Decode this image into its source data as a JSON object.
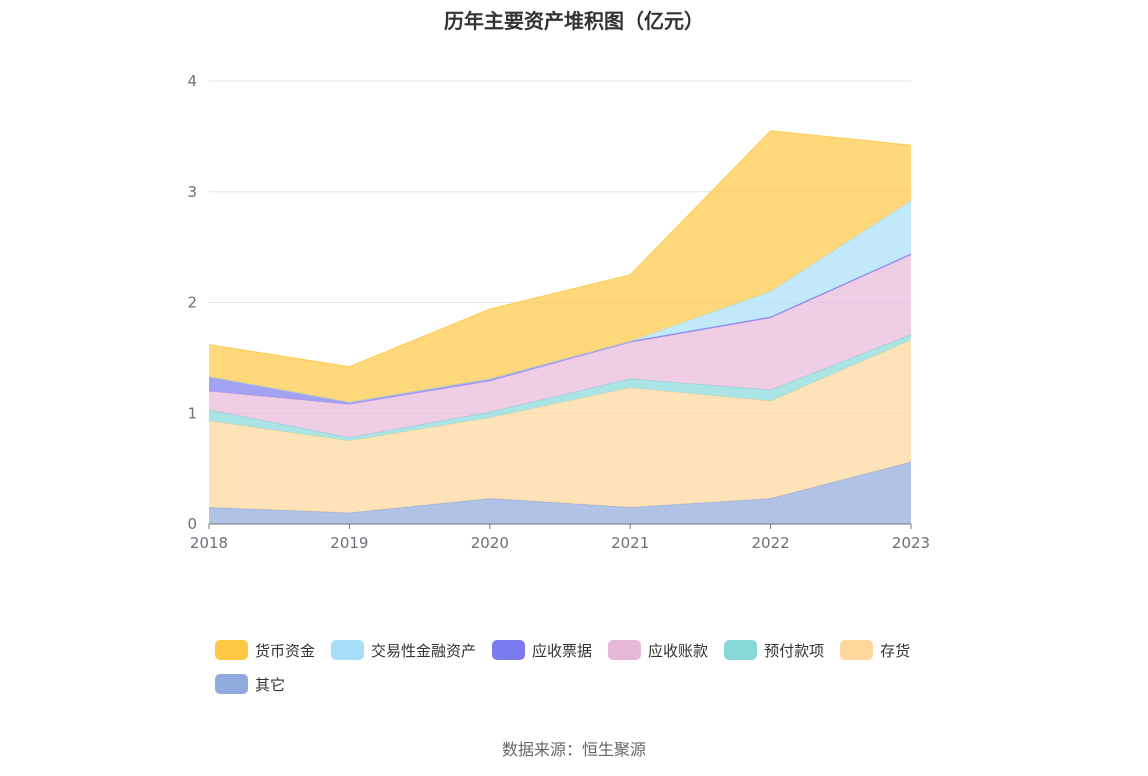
{
  "chart_data": {
    "type": "area",
    "stacked": true,
    "title": "历年主要资产堆积图（亿元）",
    "x": [
      "2018",
      "2019",
      "2020",
      "2021",
      "2022",
      "2023"
    ],
    "ylim": [
      0,
      4
    ],
    "yticks": [
      "0",
      "1",
      "2",
      "3",
      "4"
    ],
    "grid": true,
    "legend_position": "bottom",
    "series": [
      {
        "name": "其它",
        "color": "#8FAADC",
        "values": [
          0.15,
          0.1,
          0.23,
          0.15,
          0.23,
          0.56
        ]
      },
      {
        "name": "存货",
        "color": "#FFD79A",
        "values": [
          0.78,
          0.65,
          0.73,
          1.08,
          0.88,
          1.1
        ]
      },
      {
        "name": "预付款项",
        "color": "#88D8D8",
        "values": [
          0.1,
          0.03,
          0.05,
          0.08,
          0.1,
          0.05
        ]
      },
      {
        "name": "应收账款",
        "color": "#E8B8D8",
        "values": [
          0.17,
          0.3,
          0.28,
          0.33,
          0.65,
          0.72
        ]
      },
      {
        "name": "应收票据",
        "color": "#7B7BEE",
        "values": [
          0.13,
          0.02,
          0.02,
          0.01,
          0.01,
          0.01
        ]
      },
      {
        "name": "交易性金融资产",
        "color": "#A8DFF8",
        "values": [
          0.0,
          0.0,
          0.0,
          0.0,
          0.23,
          0.48
        ]
      },
      {
        "name": "货币资金",
        "color": "#FFC844",
        "values": [
          0.29,
          0.32,
          0.63,
          0.6,
          1.45,
          0.5
        ]
      }
    ]
  },
  "legend": [
    {
      "label": "货币资金",
      "color": "#FFC844"
    },
    {
      "label": "交易性金融资产",
      "color": "#A8DFF8"
    },
    {
      "label": "应收票据",
      "color": "#7B7BEE"
    },
    {
      "label": "应收账款",
      "color": "#E8B8D8"
    },
    {
      "label": "预付款项",
      "color": "#88D8D8"
    },
    {
      "label": "存货",
      "color": "#FFD79A"
    },
    {
      "label": "其它",
      "color": "#8FAADC"
    }
  ],
  "source": "数据来源：恒生聚源"
}
